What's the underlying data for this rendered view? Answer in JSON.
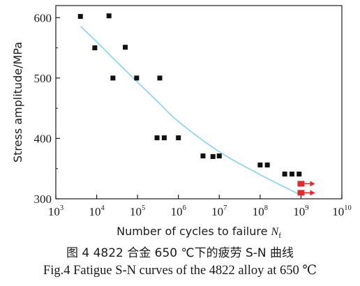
{
  "chart_data": {
    "type": "scatter",
    "xlabel": "Number of cycles to failure N",
    "xlabel_italic": "N",
    "xlabel_subscript": "f",
    "ylabel": "Stress amplitude/MPa",
    "xscale": "log",
    "xlim": [
      1000,
      10000000000
    ],
    "ylim": [
      300,
      620
    ],
    "x_ticks": [
      {
        "base": "10",
        "exp": "3"
      },
      {
        "base": "10",
        "exp": "4"
      },
      {
        "base": "10",
        "exp": "5"
      },
      {
        "base": "10",
        "exp": "6"
      },
      {
        "base": "10",
        "exp": "7"
      },
      {
        "base": "10",
        "exp": "8"
      },
      {
        "base": "10",
        "exp": "9"
      },
      {
        "base": "10",
        "exp": "10"
      }
    ],
    "y_ticks": [
      300,
      400,
      500,
      600
    ],
    "grid": false,
    "series": [
      {
        "marker": "square",
        "color": "#111111",
        "points": [
          {
            "x": 4000,
            "y": 602
          },
          {
            "x": 9000,
            "y": 550
          },
          {
            "x": 20000,
            "y": 603
          },
          {
            "x": 25000,
            "y": 500
          },
          {
            "x": 50000,
            "y": 551
          },
          {
            "x": 95000,
            "y": 500
          },
          {
            "x": 300000,
            "y": 401
          },
          {
            "x": 350000,
            "y": 500
          },
          {
            "x": 450000,
            "y": 401
          },
          {
            "x": 1000000,
            "y": 401
          },
          {
            "x": 4000000,
            "y": 371
          },
          {
            "x": 7000000,
            "y": 370
          },
          {
            "x": 10000000,
            "y": 371
          },
          {
            "x": 100000000,
            "y": 356
          },
          {
            "x": 150000000,
            "y": 356
          },
          {
            "x": 400000000,
            "y": 341
          },
          {
            "x": 600000000,
            "y": 341
          },
          {
            "x": 900000000,
            "y": 341
          }
        ]
      },
      {
        "marker": "runout-arrow",
        "color": "#e8262b",
        "points": [
          {
            "x": 1000000000,
            "y": 325
          },
          {
            "x": 1000000000,
            "y": 310
          }
        ]
      },
      {
        "type": "line",
        "color": "#8fd6f0",
        "points": [
          {
            "x": 4000,
            "y": 586
          },
          {
            "x": 10000,
            "y": 560
          },
          {
            "x": 50000,
            "y": 513
          },
          {
            "x": 300000,
            "y": 462
          },
          {
            "x": 1000000,
            "y": 428
          },
          {
            "x": 10000000,
            "y": 378
          },
          {
            "x": 100000000,
            "y": 340
          },
          {
            "x": 1000000000,
            "y": 306
          }
        ]
      }
    ]
  },
  "caption": {
    "cn": "图 4  4822 合金 650 ℃下的疲劳 S-N 曲线",
    "en": "Fig.4  Fatigue S-N curves of the 4822 alloy at 650 ℃"
  }
}
